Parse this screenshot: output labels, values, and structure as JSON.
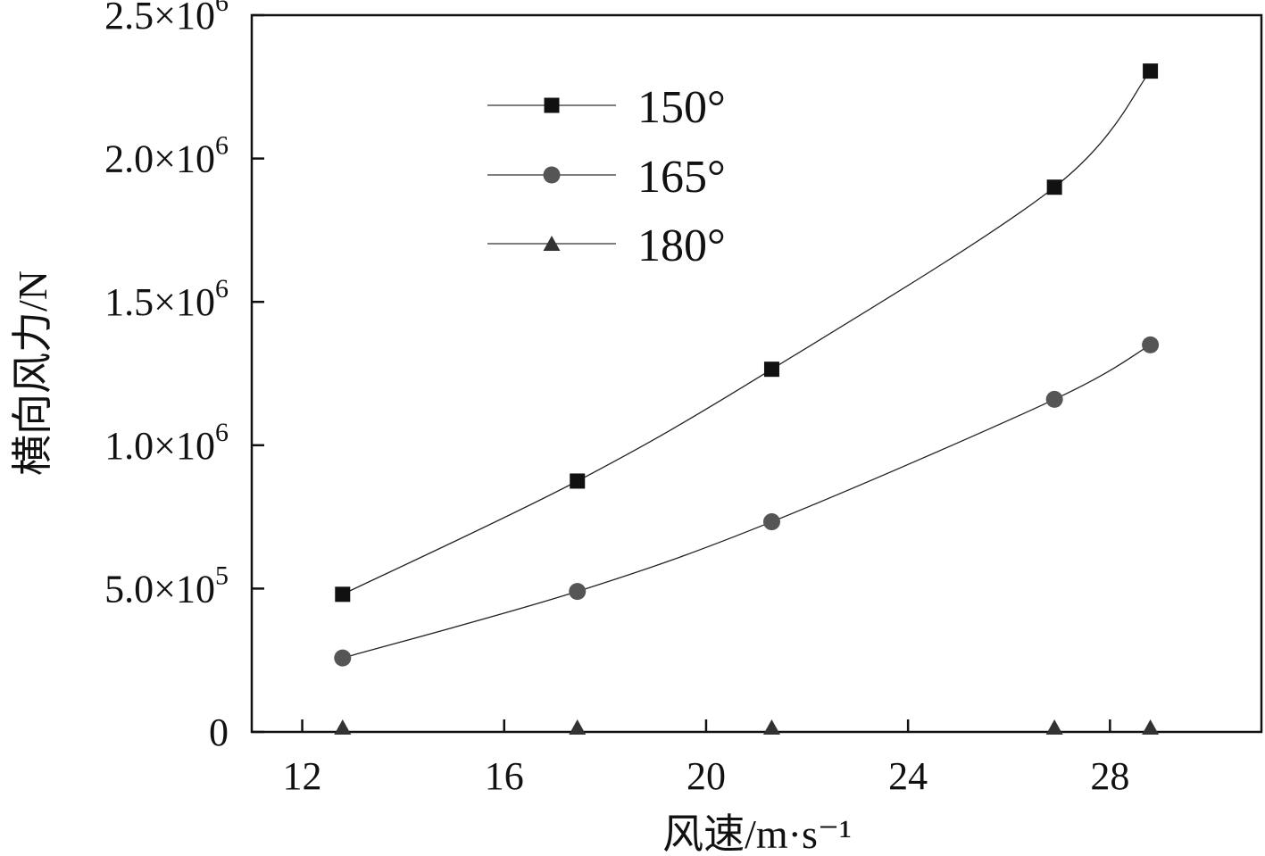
{
  "chart_data": {
    "type": "line",
    "title": "",
    "xlabel": "风速/m·s⁻¹",
    "ylabel": "横向风力/N",
    "xlim": [
      11,
      31
    ],
    "ylim": [
      0,
      2500000
    ],
    "x_ticks": [
      12,
      16,
      20,
      24,
      28
    ],
    "x_tick_labels": [
      "12",
      "16",
      "20",
      "24",
      "28"
    ],
    "y_ticks": [
      0,
      500000,
      1000000,
      1500000,
      2000000,
      2500000
    ],
    "y_tick_labels": [
      {
        "mantissa": "0",
        "exp": ""
      },
      {
        "mantissa": "5.0×10",
        "exp": "5"
      },
      {
        "mantissa": "1.0×10",
        "exp": "6"
      },
      {
        "mantissa": "1.5×10",
        "exp": "6"
      },
      {
        "mantissa": "2.0×10",
        "exp": "6"
      },
      {
        "mantissa": "2.5×10",
        "exp": "6"
      }
    ],
    "grid": false,
    "legend_position": "top-left",
    "series": [
      {
        "name": "150°",
        "marker": "square",
        "color": "#111111",
        "x": [
          12.8,
          17.45,
          21.3,
          26.9,
          28.8
        ],
        "y": [
          480000,
          875000,
          1265000,
          1900000,
          2305000
        ]
      },
      {
        "name": "165°",
        "marker": "circle",
        "color": "#555555",
        "x": [
          12.8,
          17.45,
          21.3,
          26.9,
          28.8
        ],
        "y": [
          258000,
          490000,
          733000,
          1160000,
          1350000
        ]
      },
      {
        "name": "180°",
        "marker": "triangle",
        "color": "#333333",
        "x": [
          12.8,
          17.45,
          21.3,
          26.9,
          28.8
        ],
        "y": [
          0,
          0,
          0,
          0,
          0
        ]
      }
    ]
  }
}
